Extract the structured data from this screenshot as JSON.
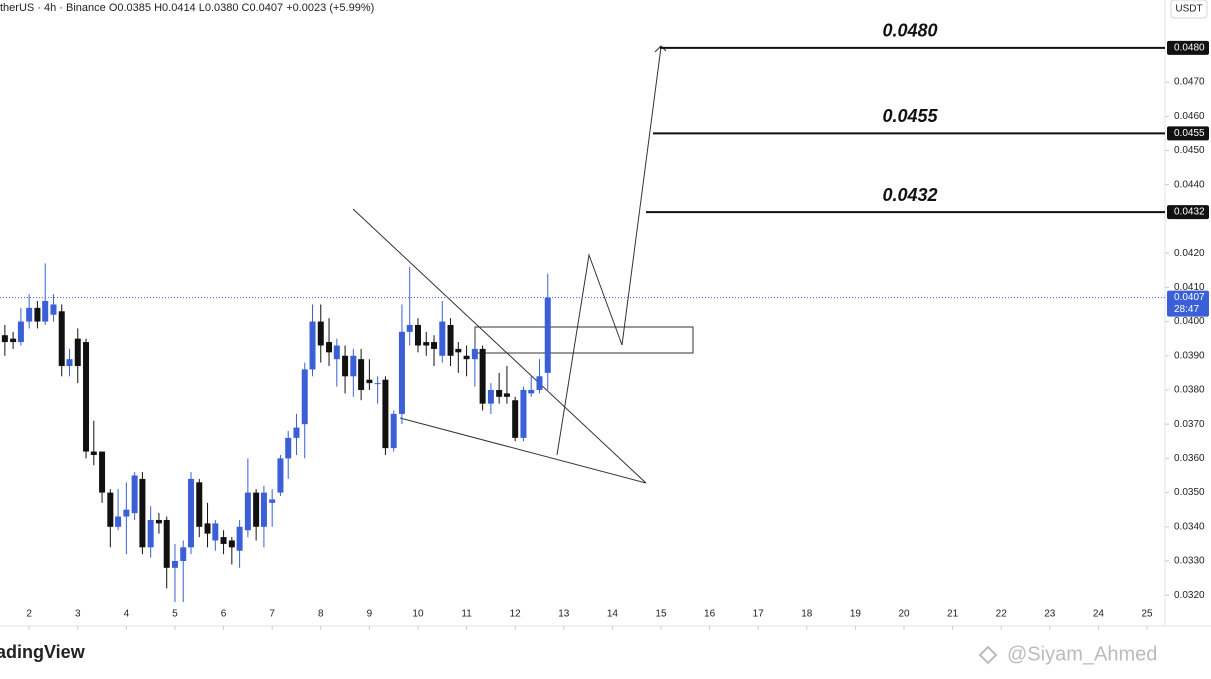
{
  "chart_data": {
    "type": "candlestick",
    "header": "therUS · 4h · Binance  O0.0385  H0.0414  L0.0380  C0.0407  +0.0023 (+5.99%)",
    "currency": "USDT",
    "logo": "adingView",
    "watermark": "@Siyam_Ahmed",
    "x": [
      1.5,
      1.67,
      1.83,
      2,
      2.17,
      2.33,
      2.5,
      2.67,
      2.83,
      3,
      3.17,
      3.33,
      3.5,
      3.67,
      3.83,
      4,
      4.17,
      4.33,
      4.5,
      4.67,
      4.83,
      5,
      5.17,
      5.33,
      5.5,
      5.67,
      5.83,
      6,
      6.17,
      6.33,
      6.5,
      6.67,
      6.83,
      7,
      7.17,
      7.33,
      7.5,
      7.67,
      7.83,
      8,
      8.17,
      8.33,
      8.5,
      8.67,
      8.83,
      9,
      9.17,
      9.33,
      9.5,
      9.67,
      9.83,
      10,
      10.17,
      10.33,
      10.5,
      10.67,
      10.83,
      11,
      11.17,
      11.33,
      11.5,
      11.67,
      11.83,
      12,
      12.17,
      12.33,
      12.5,
      12.67
    ],
    "open": [
      0.0396,
      0.0395,
      0.0394,
      0.04,
      0.0404,
      0.04,
      0.0402,
      0.0403,
      0.0387,
      0.0395,
      0.0394,
      0.0362,
      0.0362,
      0.035,
      0.034,
      0.0343,
      0.0344,
      0.0354,
      0.0334,
      0.0342,
      0.0342,
      0.0328,
      0.033,
      0.0334,
      0.0353,
      0.0341,
      0.0336,
      0.0337,
      0.0336,
      0.0333,
      0.0339,
      0.035,
      0.034,
      0.0347,
      0.035,
      0.036,
      0.0366,
      0.037,
      0.0386,
      0.04,
      0.0394,
      0.0389,
      0.039,
      0.0384,
      0.0389,
      0.0383,
      0.0382,
      0.0383,
      0.0363,
      0.0373,
      0.0397,
      0.0399,
      0.0394,
      0.0394,
      0.039,
      0.0399,
      0.0392,
      0.039,
      0.0389,
      0.0392,
      0.0376,
      0.038,
      0.0379,
      0.0377,
      0.0366,
      0.0379,
      0.038,
      0.0385
    ],
    "high": [
      0.0399,
      0.0397,
      0.0404,
      0.0408,
      0.0406,
      0.0417,
      0.0408,
      0.0405,
      0.0392,
      0.0398,
      0.0395,
      0.0371,
      0.0362,
      0.0351,
      0.0351,
      0.0353,
      0.0356,
      0.0356,
      0.0346,
      0.0344,
      0.0343,
      0.0335,
      0.0336,
      0.0356,
      0.0354,
      0.0347,
      0.0342,
      0.0339,
      0.0337,
      0.0342,
      0.036,
      0.0351,
      0.0352,
      0.0351,
      0.0361,
      0.0368,
      0.0373,
      0.0388,
      0.0405,
      0.0405,
      0.0401,
      0.0395,
      0.0393,
      0.0392,
      0.0392,
      0.0389,
      0.0384,
      0.0384,
      0.0374,
      0.0405,
      0.0416,
      0.0401,
      0.0397,
      0.0396,
      0.0406,
      0.0401,
      0.0394,
      0.0393,
      0.0393,
      0.0393,
      0.0382,
      0.0385,
      0.0387,
      0.0378,
      0.0381,
      0.0384,
      0.0389,
      0.0414
    ],
    "low": [
      0.039,
      0.0392,
      0.0393,
      0.0398,
      0.0398,
      0.0399,
      0.04,
      0.0384,
      0.0384,
      0.0382,
      0.036,
      0.0358,
      0.0347,
      0.0334,
      0.0339,
      0.0332,
      0.0342,
      0.0332,
      0.0331,
      0.0338,
      0.0322,
      0.0318,
      0.0318,
      0.0332,
      0.0337,
      0.0334,
      0.0333,
      0.0332,
      0.0329,
      0.0328,
      0.0337,
      0.0336,
      0.0334,
      0.034,
      0.0349,
      0.0354,
      0.0361,
      0.036,
      0.0384,
      0.0388,
      0.0387,
      0.0381,
      0.0379,
      0.0378,
      0.0377,
      0.038,
      0.0376,
      0.0361,
      0.0362,
      0.037,
      0.0393,
      0.0391,
      0.039,
      0.0387,
      0.0388,
      0.0387,
      0.0385,
      0.0384,
      0.0381,
      0.0374,
      0.0373,
      0.0376,
      0.0376,
      0.0365,
      0.0365,
      0.0378,
      0.0379,
      0.038
    ],
    "close": [
      0.0394,
      0.0394,
      0.04,
      0.0404,
      0.04,
      0.0406,
      0.0405,
      0.0387,
      0.0389,
      0.0387,
      0.0362,
      0.0361,
      0.035,
      0.034,
      0.0343,
      0.0345,
      0.0355,
      0.0334,
      0.0342,
      0.0341,
      0.0328,
      0.033,
      0.0334,
      0.0354,
      0.034,
      0.0338,
      0.0341,
      0.0335,
      0.0334,
      0.034,
      0.035,
      0.034,
      0.035,
      0.0348,
      0.036,
      0.0366,
      0.0369,
      0.0386,
      0.04,
      0.0393,
      0.0391,
      0.0393,
      0.0384,
      0.039,
      0.038,
      0.0382,
      0.0382,
      0.0363,
      0.0373,
      0.0397,
      0.0399,
      0.0393,
      0.0393,
      0.0392,
      0.04,
      0.039,
      0.0391,
      0.0389,
      0.0392,
      0.0376,
      0.038,
      0.0378,
      0.0378,
      0.0366,
      0.038,
      0.038,
      0.0384,
      0.0407
    ],
    "up_color": "#3a5fd6",
    "down_color": "#111111",
    "xlim": [
      1.4,
      25.37
    ],
    "ylim": [
      0.0494,
      0.0311
    ],
    "xticks": [
      2,
      3,
      4,
      5,
      6,
      7,
      8,
      9,
      10,
      11,
      12,
      13,
      14,
      15,
      16,
      17,
      18,
      19,
      20,
      21,
      22,
      23,
      24,
      25
    ],
    "yticks": [
      {
        "value": 0.032,
        "label": "0.0320"
      },
      {
        "value": 0.033,
        "label": "0.0330"
      },
      {
        "value": 0.034,
        "label": "0.0340"
      },
      {
        "value": 0.035,
        "label": "0.0350"
      },
      {
        "value": 0.036,
        "label": "0.0360"
      },
      {
        "value": 0.037,
        "label": "0.0370"
      },
      {
        "value": 0.038,
        "label": "0.0380"
      },
      {
        "value": 0.039,
        "label": "0.0390"
      },
      {
        "value": 0.04,
        "label": "0.0400"
      },
      {
        "value": 0.041,
        "label": "0.0410"
      },
      {
        "value": 0.042,
        "label": "0.0420"
      },
      {
        "value": 0.044,
        "label": "0.0440"
      },
      {
        "value": 0.045,
        "label": "0.0450"
      },
      {
        "value": 0.046,
        "label": "0.0460"
      },
      {
        "value": 0.047,
        "label": "0.0470"
      }
    ],
    "levels": [
      {
        "value": 0.048,
        "label": "0.0480"
      },
      {
        "value": 0.0455,
        "label": "0.0455"
      },
      {
        "value": 0.0432,
        "label": "0.0432"
      }
    ],
    "last_price": {
      "value": 0.0407,
      "label": "0.0407"
    },
    "countdown": "28:47"
  }
}
